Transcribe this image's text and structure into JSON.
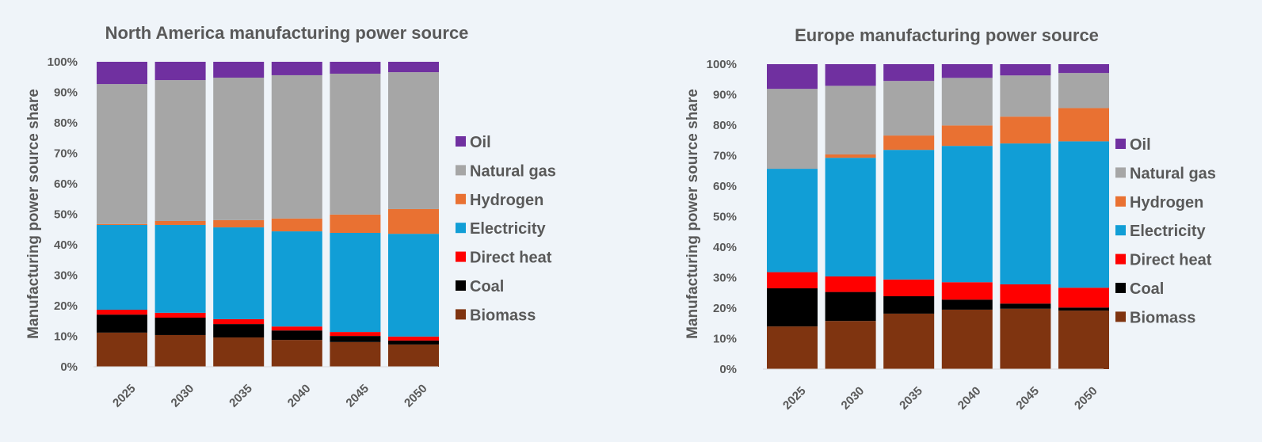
{
  "chart_data": [
    {
      "type": "bar",
      "stacked": true,
      "title": "North America manufacturing power source",
      "xlabel": "",
      "ylabel": "Manufacturing power source share",
      "ylim": [
        0,
        100
      ],
      "yticks": [
        "0%",
        "10%",
        "20%",
        "30%",
        "40%",
        "50%",
        "60%",
        "70%",
        "80%",
        "90%",
        "100%"
      ],
      "categories": [
        "2025",
        "2030",
        "2035",
        "2040",
        "2045",
        "2050"
      ],
      "legend_position": "right",
      "legend_order": [
        "Oil",
        "Natural gas",
        "Hydrogen",
        "Electricity",
        "Direct heat",
        "Coal",
        "Biomass"
      ],
      "series": [
        {
          "name": "Biomass",
          "color": "#7f3410",
          "values": [
            11.2,
            10.4,
            9.6,
            8.8,
            8.1,
            7.3
          ]
        },
        {
          "name": "Coal",
          "color": "#000000",
          "values": [
            5.9,
            5.7,
            4.4,
            3.1,
            2.0,
            1.3
          ]
        },
        {
          "name": "Direct heat",
          "color": "#ff0000",
          "values": [
            1.6,
            1.6,
            1.6,
            1.3,
            1.3,
            1.3
          ]
        },
        {
          "name": "Electricity",
          "color": "#119ed6",
          "values": [
            27.8,
            28.8,
            30.1,
            31.2,
            32.5,
            33.7
          ]
        },
        {
          "name": "Hydrogen",
          "color": "#e97132",
          "values": [
            0.3,
            1.3,
            2.4,
            4.2,
            6.0,
            8.1
          ]
        },
        {
          "name": "Natural gas",
          "color": "#a6a6a6",
          "values": [
            45.9,
            46.2,
            46.7,
            47.0,
            46.2,
            44.9
          ]
        },
        {
          "name": "Oil",
          "color": "#7030a0",
          "values": [
            7.3,
            6.0,
            5.2,
            4.4,
            3.9,
            3.4
          ]
        }
      ]
    },
    {
      "type": "bar",
      "stacked": true,
      "title": "Europe manufacturing power source",
      "xlabel": "",
      "ylabel": "Manufacturing power source share",
      "ylim": [
        0,
        100
      ],
      "yticks": [
        "0%",
        "10%",
        "20%",
        "30%",
        "40%",
        "50%",
        "60%",
        "70%",
        "80%",
        "90%",
        "100%"
      ],
      "categories": [
        "2025",
        "2030",
        "2035",
        "2040",
        "2045",
        "2050"
      ],
      "legend_position": "right",
      "legend_order": [
        "Oil",
        "Natural gas",
        "Hydrogen",
        "Electricity",
        "Direct heat",
        "Coal",
        "Biomass"
      ],
      "series": [
        {
          "name": "Biomass",
          "color": "#7f3410",
          "values": [
            14.0,
            15.8,
            18.2,
            19.5,
            19.8,
            19.2
          ]
        },
        {
          "name": "Coal",
          "color": "#000000",
          "values": [
            12.5,
            9.5,
            5.7,
            3.3,
            1.7,
            1.0
          ]
        },
        {
          "name": "Direct heat",
          "color": "#ff0000",
          "values": [
            5.3,
            5.1,
            5.5,
            5.7,
            6.3,
            6.5
          ]
        },
        {
          "name": "Electricity",
          "color": "#119ed6",
          "values": [
            33.9,
            38.9,
            42.5,
            44.7,
            46.2,
            48.0
          ]
        },
        {
          "name": "Hydrogen",
          "color": "#e97132",
          "values": [
            0.0,
            1.1,
            4.7,
            6.7,
            8.8,
            10.9
          ]
        },
        {
          "name": "Natural gas",
          "color": "#a6a6a6",
          "values": [
            26.2,
            22.5,
            17.9,
            15.6,
            13.5,
            11.5
          ]
        },
        {
          "name": "Oil",
          "color": "#7030a0",
          "values": [
            8.1,
            7.1,
            5.5,
            4.5,
            3.7,
            2.9
          ]
        }
      ]
    }
  ]
}
